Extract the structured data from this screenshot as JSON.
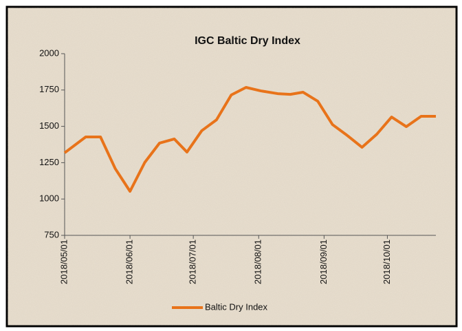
{
  "chart_data": {
    "type": "line",
    "title": "IGC Baltic Dry Index",
    "x": [
      "2018/05/01",
      "2018/05/11",
      "2018/05/18",
      "2018/05/25",
      "2018/06/01",
      "2018/06/08",
      "2018/06/15",
      "2018/06/22",
      "2018/06/28",
      "2018/07/05",
      "2018/07/12",
      "2018/07/19",
      "2018/07/26",
      "2018/08/02",
      "2018/08/10",
      "2018/08/16",
      "2018/08/22",
      "2018/08/29",
      "2018/09/05",
      "2018/09/12",
      "2018/09/19",
      "2018/09/26",
      "2018/10/03",
      "2018/10/10",
      "2018/10/17",
      "2018/10/24"
    ],
    "series": [
      {
        "name": "Baltic Dry Index",
        "color": "#e8731a",
        "values": [
          1318,
          1427,
          1427,
          1209,
          1053,
          1252,
          1385,
          1413,
          1323,
          1470,
          1545,
          1716,
          1768,
          1744,
          1725,
          1720,
          1735,
          1673,
          1512,
          1437,
          1356,
          1446,
          1564,
          1498,
          1569,
          1569
        ]
      }
    ],
    "xlim": [
      "2018/05/01",
      "2018/10/24"
    ],
    "xticks": [
      "2018/05/01",
      "2018/06/01",
      "2018/07/01",
      "2018/08/01",
      "2018/09/01",
      "2018/10/01"
    ],
    "ylim": [
      750,
      2000
    ],
    "yticks": [
      750,
      1000,
      1250,
      1500,
      1750,
      2000
    ],
    "legend": "bottom"
  }
}
